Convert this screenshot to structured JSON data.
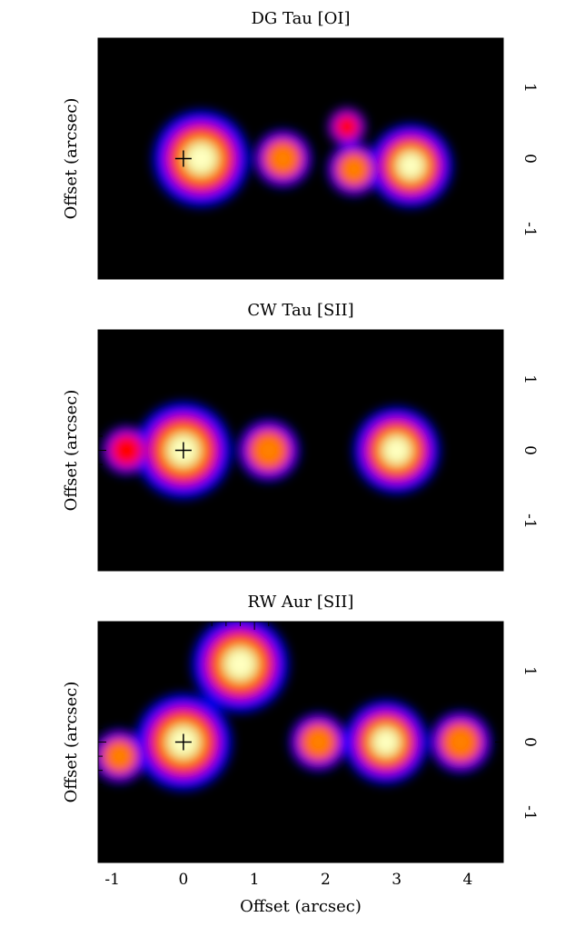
{
  "figure": {
    "x_axis_label": "Offset (arcsec)",
    "y_axis_label": "Offset (arcsec)"
  },
  "chart_data": [
    {
      "type": "heatmap",
      "title": "DG Tau [OI]",
      "xlabel": "",
      "ylabel": "Offset (arcsec)",
      "xlim": [
        -1.2,
        4.5
      ],
      "ylim": [
        1.7,
        -1.7
      ],
      "x_ticks": [],
      "y_ticks": [
        "-1",
        "0",
        "1"
      ],
      "colormap": [
        "#000000",
        "#0000ff",
        "#ff0000",
        "#ff8000",
        "#c8d820",
        "#ffffc0"
      ],
      "source_marker": {
        "x": 0,
        "y": 0,
        "symbol": "+"
      },
      "emission_components": [
        {
          "x": 0.25,
          "y": 0.0,
          "peak": 1.0
        },
        {
          "x": 1.4,
          "y": 0.0,
          "peak": 0.35
        },
        {
          "x": 2.4,
          "y": -0.15,
          "peak": 0.3
        },
        {
          "x": 3.2,
          "y": -0.1,
          "peak": 0.75
        },
        {
          "x": 2.3,
          "y": 0.45,
          "peak": 0.15
        }
      ]
    },
    {
      "type": "heatmap",
      "title": "CW Tau [SII]",
      "xlabel": "",
      "ylabel": "Offset (arcsec)",
      "xlim": [
        -1.2,
        4.5
      ],
      "ylim": [
        1.7,
        -1.7
      ],
      "x_ticks": [],
      "y_ticks": [
        "-1",
        "0",
        "1"
      ],
      "colormap": [
        "#000000",
        "#0000ff",
        "#ff0000",
        "#ff8000",
        "#c8d820",
        "#ffffc0"
      ],
      "source_marker": {
        "x": 0,
        "y": 0,
        "symbol": "+"
      },
      "emission_components": [
        {
          "x": 0.0,
          "y": 0.0,
          "peak": 1.0
        },
        {
          "x": 1.2,
          "y": 0.0,
          "peak": 0.4
        },
        {
          "x": -0.8,
          "y": 0.0,
          "peak": 0.25
        },
        {
          "x": 3.0,
          "y": 0.0,
          "peak": 0.8
        }
      ]
    },
    {
      "type": "heatmap",
      "title": "RW Aur [SII]",
      "xlabel": "Offset (arcsec)",
      "ylabel": "Offset (arcsec)",
      "xlim": [
        -1.2,
        4.5
      ],
      "ylim": [
        1.7,
        -1.7
      ],
      "x_ticks": [
        "-1",
        "0",
        "1",
        "2",
        "3",
        "4"
      ],
      "y_ticks": [
        "-1",
        "0",
        "1"
      ],
      "colormap": [
        "#000000",
        "#0000ff",
        "#ff0000",
        "#ff8000",
        "#c8d820",
        "#ffffc0"
      ],
      "source_marker": {
        "x": 0,
        "y": 0,
        "symbol": "+"
      },
      "emission_components": [
        {
          "x": 0.0,
          "y": 0.0,
          "peak": 1.0
        },
        {
          "x": 0.8,
          "y": 1.1,
          "peak": 1.0
        },
        {
          "x": -0.9,
          "y": -0.2,
          "peak": 0.3
        },
        {
          "x": 1.9,
          "y": 0.0,
          "peak": 0.35
        },
        {
          "x": 2.85,
          "y": 0.0,
          "peak": 0.75
        },
        {
          "x": 3.9,
          "y": 0.0,
          "peak": 0.4
        }
      ]
    }
  ]
}
